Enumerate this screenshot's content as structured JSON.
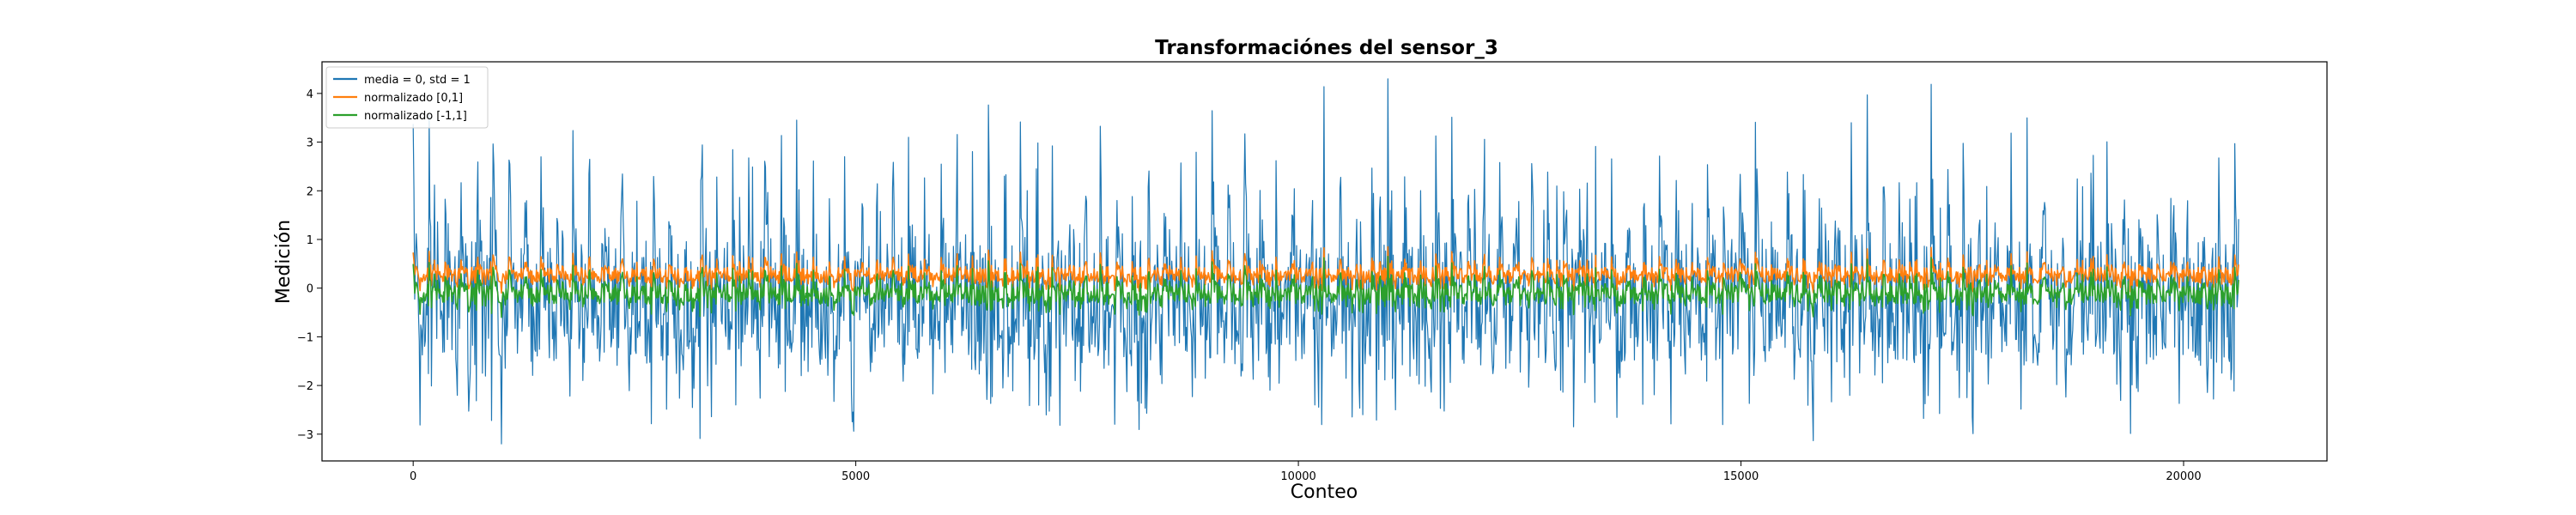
{
  "chart_data": {
    "type": "line",
    "title": "Transformaciónes del sensor_3",
    "xlabel": "Conteo",
    "ylabel": "Medición",
    "xlim": [
      -1030,
      21620
    ],
    "ylim": [
      -3.55,
      4.65
    ],
    "xticks": [
      0,
      5000,
      10000,
      15000,
      20000
    ],
    "yticks": [
      -3,
      -2,
      -1,
      0,
      1,
      2,
      3,
      4
    ],
    "grid": false,
    "legend_position": "top-left",
    "x_range": [
      0,
      20630
    ],
    "series": [
      {
        "name": "media = 0, std = 1",
        "color": "#1f77b4",
        "range": [
          -3.2,
          4.3
        ]
      },
      {
        "name": "normalizado [0,1]",
        "color": "#ff7f0e",
        "range": [
          -0.1,
          0.85
        ]
      },
      {
        "name": "normalizado [-1,1]",
        "color": "#2ca02c",
        "range": [
          -0.6,
          0.65
        ]
      }
    ]
  }
}
